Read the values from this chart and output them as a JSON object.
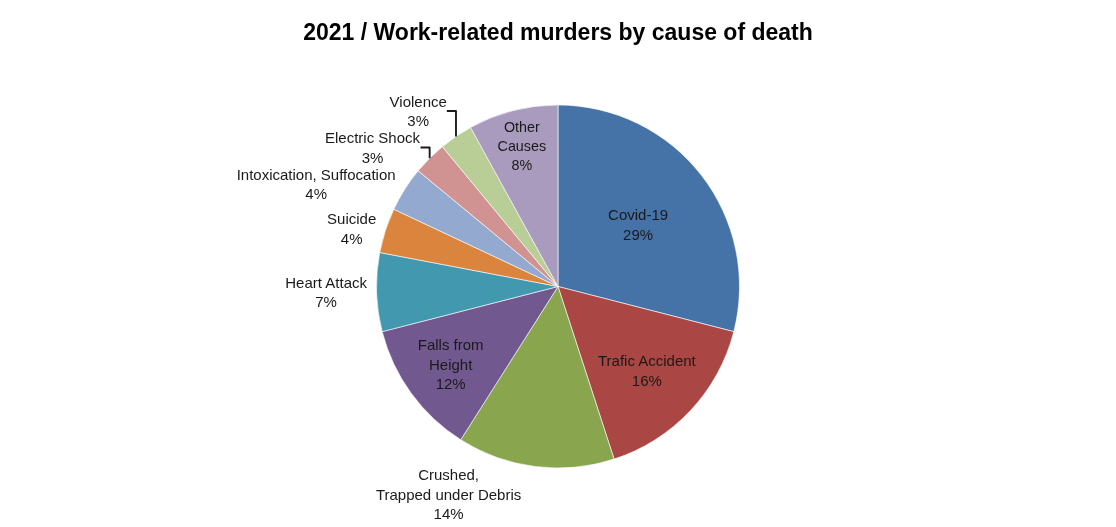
{
  "chart_data": {
    "type": "pie",
    "title": "2021 / Work-related murders by cause of death",
    "categories": [
      "Covid-19",
      "Trafic Accident",
      "Crushed, Trapped under Debris",
      "Falls from Height",
      "Heart Attack",
      "Suicide",
      "Intoxication, Suffocation",
      "Electric Shock",
      "Violence",
      "Other Causes"
    ],
    "values": [
      29,
      16,
      14,
      12,
      7,
      4,
      4,
      3,
      3,
      8
    ],
    "value_labels": [
      "29%",
      "16%",
      "14%",
      "12%",
      "7%",
      "4%",
      "4%",
      "3%",
      "3%",
      "8%"
    ],
    "colors": [
      "#4572a7",
      "#aa4643",
      "#89a54e",
      "#71588f",
      "#4198af",
      "#db843d",
      "#93a9cf",
      "#d19392",
      "#b9cd96",
      "#a99bbd"
    ]
  }
}
